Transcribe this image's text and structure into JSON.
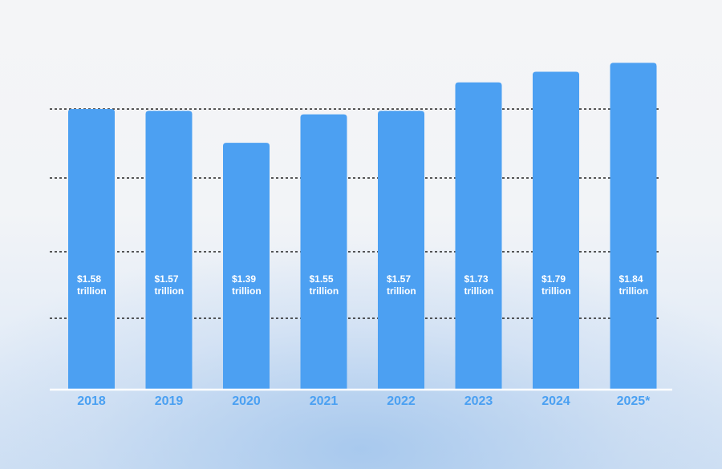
{
  "colors": {
    "bar": "#4ca0f2",
    "tick_label": "#4aa0f2",
    "gridline": "#222222",
    "baseline": "#ffffff",
    "bar_label": "#ffffff"
  },
  "chart_data": {
    "type": "bar",
    "categories": [
      "2018",
      "2019",
      "2020",
      "2021",
      "2022",
      "2023",
      "2024",
      "2025*"
    ],
    "values": [
      1.58,
      1.57,
      1.39,
      1.55,
      1.57,
      1.73,
      1.79,
      1.84
    ],
    "data_labels": [
      [
        "$1.58",
        "trillion"
      ],
      [
        "$1.57",
        "trillion"
      ],
      [
        "$1.39",
        "trillion"
      ],
      [
        "$1.55",
        "trillion"
      ],
      [
        "$1.57",
        "trillion"
      ],
      [
        "$1.73",
        "trillion"
      ],
      [
        "$1.79",
        "trillion"
      ],
      [
        "$1.84",
        "trillion"
      ]
    ],
    "unit": "trillion USD",
    "title": "",
    "xlabel": "",
    "ylabel": "",
    "grid": true,
    "gridline_style": "dotted",
    "legend": "none"
  }
}
